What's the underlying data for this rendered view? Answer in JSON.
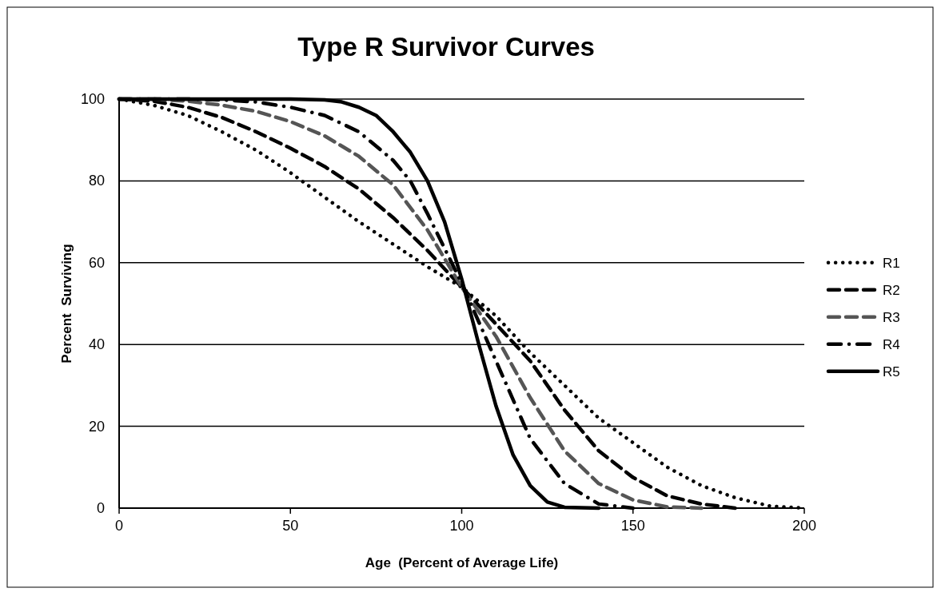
{
  "chart_data": {
    "type": "line",
    "title": "Type R Survivor Curves",
    "xlabel": "Age  (Percent of Average Life)",
    "ylabel": "Percent  Surviving",
    "xlim": [
      0,
      200
    ],
    "xticks": [
      0,
      50,
      100,
      150,
      200
    ],
    "ylim": [
      0,
      100
    ],
    "yticks": [
      0,
      20,
      40,
      60,
      80,
      100
    ],
    "grid": "y",
    "legend": "right",
    "marker": "none",
    "series": [
      {
        "name": "R1",
        "color": "#000000",
        "line_style": "dotted",
        "x": [
          0,
          10,
          20,
          30,
          40,
          50,
          60,
          70,
          80,
          90,
          100,
          110,
          120,
          130,
          140,
          150,
          160,
          170,
          180,
          190,
          200
        ],
        "values": [
          100,
          98.5,
          96,
          92,
          87.5,
          82,
          76,
          70,
          64.5,
          59,
          54,
          47,
          38,
          30,
          22,
          16,
          10,
          5.5,
          2.5,
          0.5,
          0
        ]
      },
      {
        "name": "R2",
        "color": "#000000",
        "line_style": "dashed",
        "x": [
          0,
          10,
          20,
          30,
          40,
          50,
          60,
          70,
          80,
          90,
          100,
          110,
          120,
          130,
          140,
          150,
          160,
          170,
          180
        ],
        "values": [
          100,
          99.5,
          98,
          95.5,
          92,
          88,
          83.5,
          78,
          71,
          63,
          54,
          45,
          36,
          24,
          14,
          7.5,
          3,
          1,
          0
        ]
      },
      {
        "name": "R3",
        "color": "#555555",
        "line_style": "dashed",
        "x": [
          0,
          10,
          20,
          30,
          40,
          50,
          60,
          70,
          80,
          90,
          100,
          110,
          120,
          130,
          140,
          150,
          160,
          170
        ],
        "values": [
          100,
          100,
          99.5,
          98.5,
          97,
          94.5,
          91,
          86,
          79,
          68,
          54,
          42,
          27,
          14,
          6,
          2,
          0.3,
          0
        ]
      },
      {
        "name": "R4",
        "color": "#000000",
        "line_style": "dashdot",
        "x": [
          0,
          20,
          30,
          40,
          50,
          60,
          70,
          80,
          85,
          90,
          100,
          110,
          120,
          130,
          140,
          150
        ],
        "values": [
          100,
          100,
          99.8,
          99.3,
          98,
          96,
          92,
          85,
          80,
          72,
          55,
          36,
          17,
          6,
          1,
          0
        ]
      },
      {
        "name": "R5",
        "color": "#000000",
        "line_style": "solid",
        "x": [
          0,
          50,
          60,
          65,
          70,
          75,
          80,
          85,
          90,
          95,
          100,
          105,
          110,
          115,
          120,
          125,
          130,
          140
        ],
        "values": [
          100,
          100,
          99.8,
          99.3,
          98,
          96,
          92,
          87,
          80,
          70,
          56,
          40,
          25,
          13,
          5.5,
          1.5,
          0.2,
          0
        ]
      }
    ]
  }
}
